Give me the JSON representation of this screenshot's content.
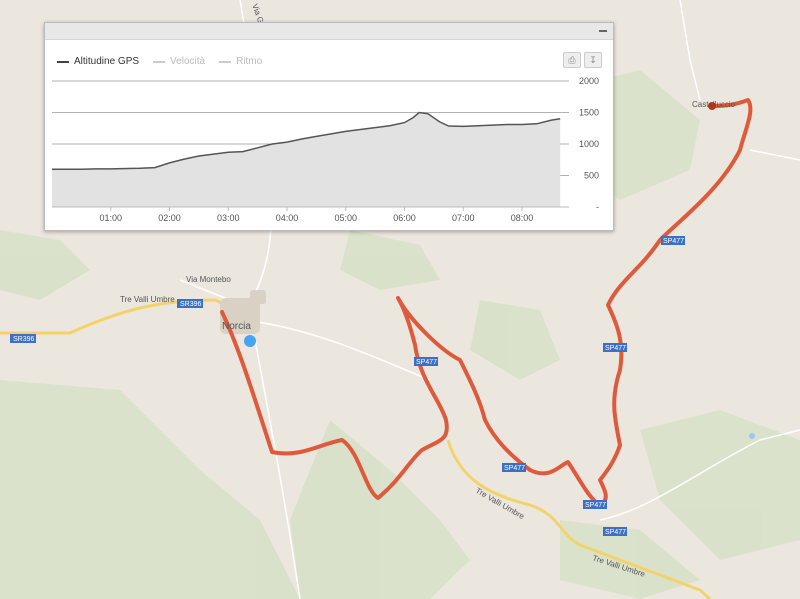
{
  "map": {
    "places": [
      {
        "name": "Norcia"
      },
      {
        "name": "Castelluccio"
      },
      {
        "name": "Via Montebo"
      },
      {
        "name": "Tre Valli Umbre"
      },
      {
        "name": "Tre Valli Umbre"
      },
      {
        "name": "Tre Valli Umbre"
      },
      {
        "name": "Via Gra"
      }
    ],
    "road_shields": [
      "SR396",
      "SR396",
      "SP477",
      "SP477",
      "SP477",
      "SP477",
      "SP477",
      "SP477"
    ],
    "route_color": "#dd5a3c",
    "start_marker_color": "#4aa3f0",
    "end_marker_color": "#c0301a"
  },
  "panel": {
    "legend": [
      {
        "label": "Altitudine GPS",
        "color": "#444444",
        "active": true
      },
      {
        "label": "Velocità",
        "color": "#cccccc",
        "active": false
      },
      {
        "label": "Ritmo",
        "color": "#cccccc",
        "active": false
      }
    ],
    "tools": {
      "print_icon": "print-icon",
      "download_icon": "download-icon"
    }
  },
  "chart_data": {
    "type": "area",
    "series": [
      {
        "name": "Altitudine GPS",
        "color": "#555555",
        "fill": "#e2e2e2"
      }
    ],
    "x": [
      0,
      0.25,
      0.5,
      0.75,
      1.0,
      1.2,
      1.5,
      1.75,
      2.0,
      2.25,
      2.5,
      2.75,
      3.0,
      3.25,
      3.5,
      3.75,
      4.0,
      4.25,
      4.5,
      4.75,
      5.0,
      5.25,
      5.5,
      5.75,
      6.0,
      6.15,
      6.25,
      6.4,
      6.6,
      6.75,
      7.0,
      7.25,
      7.5,
      7.75,
      8.0,
      8.25,
      8.5,
      8.65
    ],
    "values": [
      600,
      600,
      600,
      605,
      605,
      610,
      615,
      625,
      700,
      760,
      810,
      840,
      870,
      880,
      940,
      1000,
      1030,
      1080,
      1120,
      1160,
      1200,
      1230,
      1260,
      1290,
      1340,
      1420,
      1500,
      1480,
      1350,
      1285,
      1280,
      1290,
      1300,
      1310,
      1310,
      1320,
      1380,
      1400
    ],
    "x_ticks": [
      "01:00",
      "02:00",
      "03:00",
      "04:00",
      "05:00",
      "06:00",
      "07:00",
      "08:00"
    ],
    "y_ticks": [
      "2000",
      "1500",
      "1000",
      "500"
    ],
    "ylim": [
      0,
      2000
    ],
    "grid": true,
    "legend_position": "top-left"
  }
}
